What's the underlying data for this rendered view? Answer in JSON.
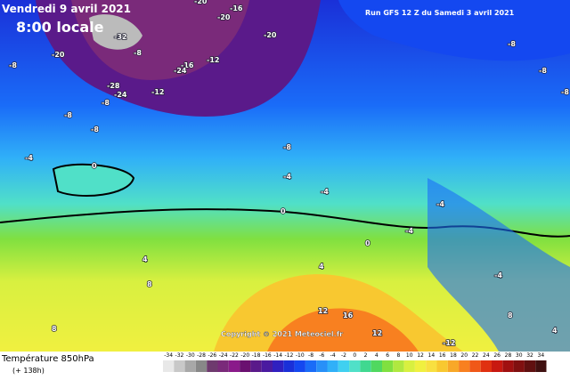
{
  "header": {
    "valid_time": "Vendredi 9 avril 2021",
    "local_time": "8:00 locale",
    "run": "Run GFS 12 Z du Samedi 3 avril 2021"
  },
  "map": {
    "copyright": "Copyright © 2021 Meteociel.fr",
    "contour_labels": [
      "-20",
      "-16",
      "-20",
      "-32",
      "-20",
      "-8",
      "-20",
      "-12",
      "-16",
      "-24",
      "-28",
      "-24",
      "-12",
      "-8",
      "-8",
      "-8",
      "-8",
      "-4",
      "0",
      "-8",
      "-4",
      "-4",
      "0",
      "-4",
      "0",
      "-4",
      "-8",
      "-8",
      "-8",
      "-4",
      "4",
      "8",
      "4",
      "8",
      "12",
      "16",
      "12",
      "-12",
      "4",
      "8"
    ]
  },
  "legend": {
    "title": "Température 850hPa",
    "lead": "(+ 138h)",
    "labels": [
      -34,
      -32,
      -30,
      -28,
      -26,
      -24,
      -22,
      -20,
      -18,
      -16,
      -14,
      -12,
      -10,
      -8,
      -6,
      -4,
      -2,
      0,
      2,
      4,
      6,
      8,
      10,
      12,
      14,
      16,
      18,
      20,
      22,
      24,
      26,
      28,
      30,
      32,
      34
    ],
    "colors": [
      "#e8e8e8",
      "#c8c8c8",
      "#a8a8a8",
      "#888888",
      "#6e3a6e",
      "#7a2a7a",
      "#8a1a8a",
      "#6a1070",
      "#5a1a8a",
      "#4a1aa0",
      "#3020c0",
      "#1a30d8",
      "#1448f0",
      "#1a6cf8",
      "#2890f8",
      "#30b0f8",
      "#40d0f0",
      "#50e0c8",
      "#40d890",
      "#50d860",
      "#80e040",
      "#b0e840",
      "#d8f040",
      "#f0f040",
      "#f8e040",
      "#f8c830",
      "#f8a828",
      "#f88020",
      "#f05818",
      "#e03010",
      "#c81810",
      "#a01010",
      "#801010",
      "#601010",
      "#401010"
    ]
  }
}
